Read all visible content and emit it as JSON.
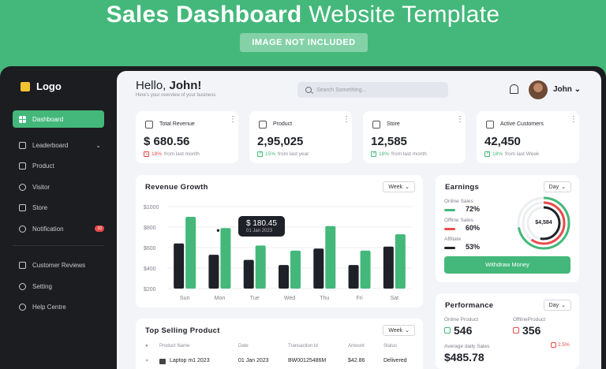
{
  "banner": {
    "title_bold": "Sales Dashboard",
    "title_light": "Website Template",
    "badge": "IMAGE NOT INCLUDED"
  },
  "sidebar": {
    "logo": "Logo",
    "items": [
      {
        "label": "Dashboard",
        "icon": "grid-icon"
      },
      {
        "label": "Leaderboard",
        "icon": "chart-icon"
      },
      {
        "label": "Product",
        "icon": "box-icon"
      },
      {
        "label": "Visitor",
        "icon": "user-icon"
      },
      {
        "label": "Store",
        "icon": "store-icon"
      },
      {
        "label": "Notification",
        "icon": "bell-icon",
        "badge": "10"
      }
    ],
    "bottom_items": [
      {
        "label": "Customer Reviews",
        "icon": "star-icon"
      },
      {
        "label": "Setting",
        "icon": "gear-icon"
      },
      {
        "label": "Help Centre",
        "icon": "help-icon"
      }
    ]
  },
  "header": {
    "greeting": "Hello,",
    "name": "John!",
    "subtitle": "Here's your overview of your business",
    "search_placeholder": "Search Something...",
    "user": "John"
  },
  "stats": [
    {
      "label": "Total Revenue",
      "value": "$ 680.56",
      "change": "18%",
      "note": "from last month",
      "dir": "down"
    },
    {
      "label": "Product",
      "value": "2,95,025",
      "change": "15%",
      "note": "from last year",
      "dir": "up"
    },
    {
      "label": "Store",
      "value": "12,585",
      "change": "18%",
      "note": "from last month",
      "dir": "up"
    },
    {
      "label": "Active Customers",
      "value": "42,450",
      "change": "18%",
      "note": "from last Week",
      "dir": "up"
    }
  ],
  "revenue": {
    "title": "Revenue Growth",
    "period": "Week",
    "tooltip_value": "$ 180.45",
    "tooltip_date": "01 Jan 2023"
  },
  "chart_data": {
    "type": "bar",
    "categories": [
      "Sun",
      "Mon",
      "Tue",
      "Wed",
      "Thu",
      "Fri",
      "Sat"
    ],
    "series": [
      {
        "values": [
          640,
          530,
          480,
          430,
          590,
          430,
          610
        ],
        "color": "#1f2128"
      },
      {
        "values": [
          900,
          790,
          620,
          570,
          810,
          570,
          730
        ],
        "color": "#43b87a"
      }
    ],
    "yticks": [
      "$1000",
      "$800",
      "$600",
      "$400",
      "$200"
    ],
    "ylim": [
      200,
      1000
    ]
  },
  "earnings": {
    "title": "Earnings",
    "period": "Day",
    "rows": [
      {
        "label": "Online Sales",
        "pct": "72%",
        "color": "#43b87a"
      },
      {
        "label": "Offline Sales",
        "pct": "60%",
        "color": "#e94a4a"
      },
      {
        "label": "Affiliate",
        "pct": "53%",
        "color": "#1f2128"
      }
    ],
    "total": "$4,584",
    "button": "Withdraw Money"
  },
  "performance": {
    "title": "Performance",
    "period": "Day",
    "online_label": "Online Product",
    "online_value": "546",
    "offline_label": "OfflineProduct",
    "offline_value": "356",
    "avg_label": "Average daily Sales",
    "avg_value": "$485.78",
    "avg_change": "2.5%"
  },
  "top_selling": {
    "title": "Top Selling Product",
    "period": "Week",
    "headers": [
      "Product Name",
      "Date",
      "Transaction Id",
      "Amount",
      "Status"
    ],
    "row": {
      "name": "Laptop m1 2023",
      "date": "01 Jan 2023",
      "tid": "BW00125486M",
      "amount": "$42.86",
      "status": "Delivered"
    }
  }
}
